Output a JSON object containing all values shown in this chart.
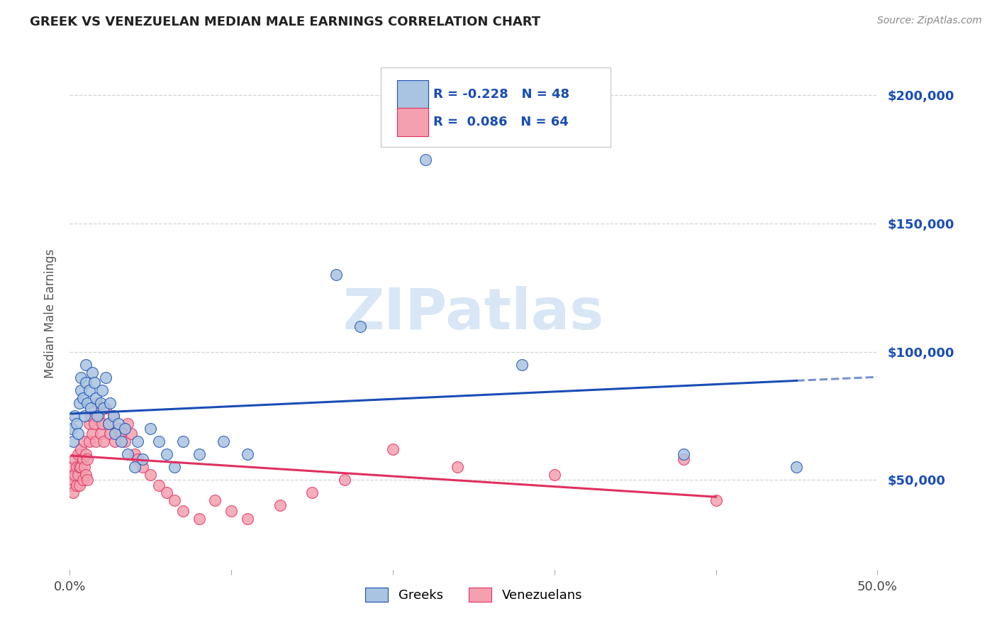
{
  "title": "GREEK VS VENEZUELAN MEDIAN MALE EARNINGS CORRELATION CHART",
  "source": "Source: ZipAtlas.com",
  "ylabel": "Median Male Earnings",
  "xlim": [
    0.0,
    0.5
  ],
  "ylim": [
    15000,
    215000
  ],
  "yticks": [
    50000,
    100000,
    150000,
    200000
  ],
  "ytick_labels": [
    "$50,000",
    "$100,000",
    "$150,000",
    "$200,000"
  ],
  "xticks": [
    0.0,
    0.1,
    0.2,
    0.3,
    0.4,
    0.5
  ],
  "xtick_labels": [
    "0.0%",
    "",
    "",
    "",
    "",
    "50.0%"
  ],
  "greek_R": -0.228,
  "greek_N": 48,
  "venezuelan_R": 0.086,
  "venezuelan_N": 64,
  "greek_color": "#a8c4e0",
  "venezuelan_color": "#f4a0b0",
  "greek_line_color": "#1a4db5",
  "venezuelan_line_color": "#e03060",
  "background_color": "#ffffff",
  "watermark": "ZIPatlas",
  "watermark_color": "#d8e6f5",
  "greek_x": [
    0.001,
    0.002,
    0.003,
    0.004,
    0.005,
    0.006,
    0.007,
    0.007,
    0.008,
    0.009,
    0.01,
    0.01,
    0.011,
    0.012,
    0.013,
    0.014,
    0.015,
    0.016,
    0.017,
    0.019,
    0.02,
    0.021,
    0.022,
    0.024,
    0.025,
    0.027,
    0.028,
    0.03,
    0.032,
    0.034,
    0.036,
    0.04,
    0.042,
    0.045,
    0.05,
    0.055,
    0.06,
    0.065,
    0.07,
    0.08,
    0.095,
    0.11,
    0.165,
    0.18,
    0.22,
    0.28,
    0.38,
    0.45
  ],
  "greek_y": [
    70000,
    65000,
    75000,
    72000,
    68000,
    80000,
    90000,
    85000,
    82000,
    75000,
    95000,
    88000,
    80000,
    85000,
    78000,
    92000,
    88000,
    82000,
    75000,
    80000,
    85000,
    78000,
    90000,
    72000,
    80000,
    75000,
    68000,
    72000,
    65000,
    70000,
    60000,
    55000,
    65000,
    58000,
    70000,
    65000,
    60000,
    55000,
    65000,
    60000,
    65000,
    60000,
    130000,
    110000,
    175000,
    95000,
    60000,
    55000
  ],
  "venezuelan_x": [
    0.001,
    0.001,
    0.002,
    0.002,
    0.002,
    0.003,
    0.003,
    0.004,
    0.004,
    0.005,
    0.005,
    0.006,
    0.006,
    0.007,
    0.007,
    0.008,
    0.008,
    0.009,
    0.009,
    0.01,
    0.01,
    0.011,
    0.011,
    0.012,
    0.012,
    0.013,
    0.014,
    0.015,
    0.016,
    0.017,
    0.018,
    0.019,
    0.02,
    0.021,
    0.022,
    0.024,
    0.025,
    0.027,
    0.028,
    0.03,
    0.032,
    0.034,
    0.036,
    0.038,
    0.04,
    0.042,
    0.045,
    0.05,
    0.055,
    0.06,
    0.065,
    0.07,
    0.08,
    0.09,
    0.1,
    0.11,
    0.13,
    0.15,
    0.17,
    0.2,
    0.24,
    0.3,
    0.38,
    0.4
  ],
  "venezuelan_y": [
    52000,
    48000,
    55000,
    50000,
    45000,
    58000,
    52000,
    55000,
    48000,
    60000,
    52000,
    55000,
    48000,
    62000,
    55000,
    58000,
    50000,
    65000,
    55000,
    60000,
    52000,
    58000,
    50000,
    72000,
    65000,
    75000,
    68000,
    72000,
    65000,
    80000,
    75000,
    68000,
    72000,
    65000,
    78000,
    72000,
    68000,
    75000,
    65000,
    70000,
    68000,
    65000,
    72000,
    68000,
    60000,
    58000,
    55000,
    52000,
    48000,
    45000,
    42000,
    38000,
    35000,
    42000,
    38000,
    35000,
    40000,
    45000,
    50000,
    62000,
    55000,
    52000,
    58000,
    42000
  ]
}
